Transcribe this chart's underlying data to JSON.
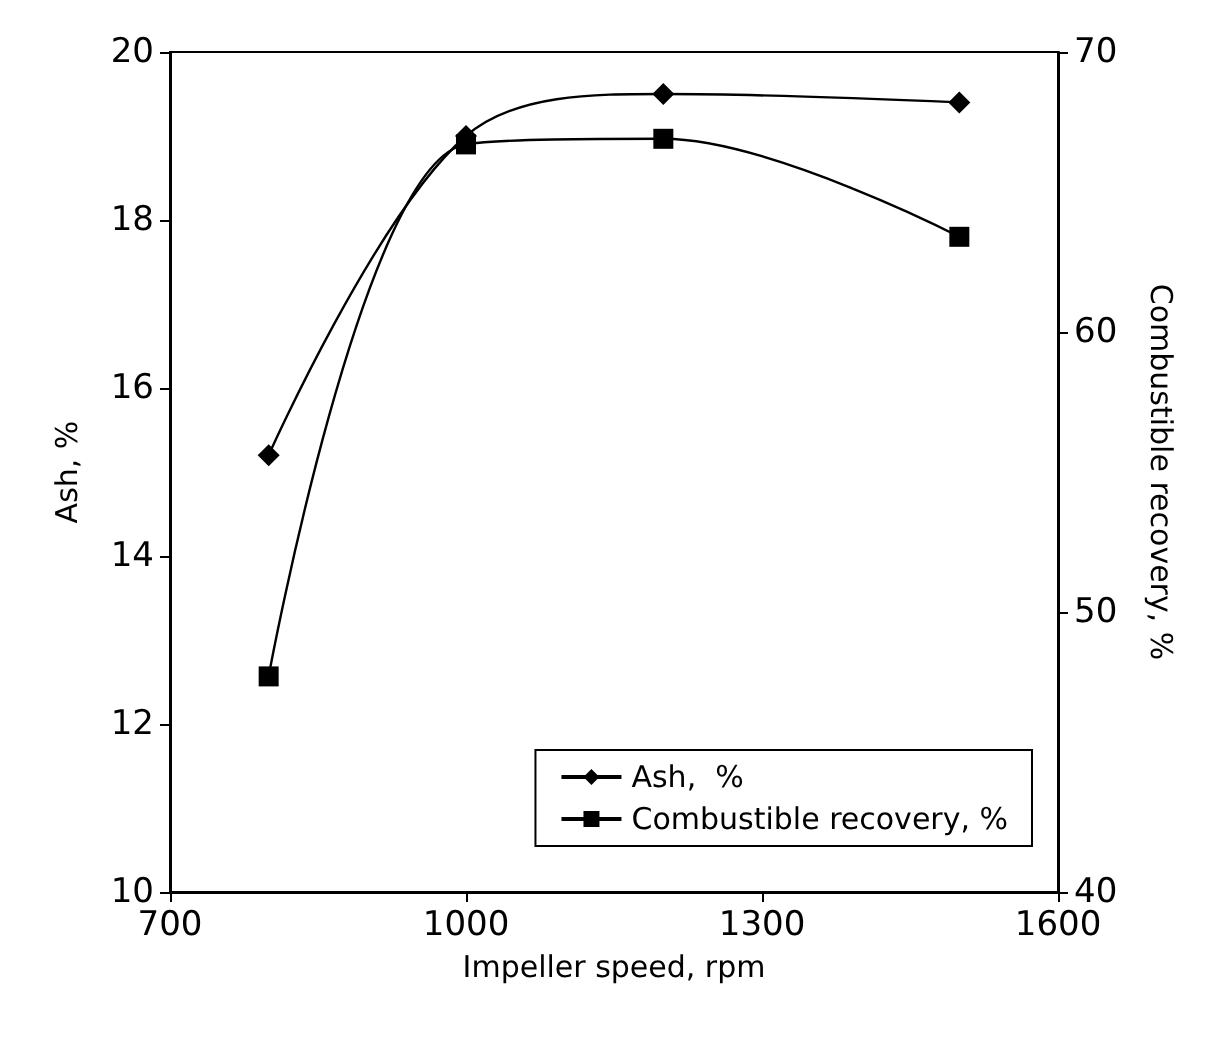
{
  "chart_data": {
    "type": "line",
    "xlabel": "Impeller speed, rpm",
    "ylabel": "Ash, %",
    "y2label": "Combustible recovery, %",
    "x": [
      800,
      1000,
      1200,
      1500
    ],
    "xlim": [
      700,
      1600
    ],
    "xticks": [
      700,
      1000,
      1300,
      1600
    ],
    "ylim": [
      10,
      20
    ],
    "yticks": [
      10,
      12,
      14,
      16,
      18,
      20
    ],
    "y2lim": [
      40,
      70
    ],
    "y2ticks": [
      40,
      50,
      60,
      70
    ],
    "legend": "bottom right",
    "grid": false,
    "line_style": "solid",
    "series": [
      {
        "name": "Ash,  %",
        "color": "#000000",
        "marker": "diamond",
        "values": [
          15.2,
          19.0,
          19.5,
          19.4
        ]
      },
      {
        "name": "Combustible recovery, %",
        "color": "#000000",
        "marker": "square",
        "axis": "y2",
        "values": [
          47.7,
          66.7,
          66.9,
          63.4
        ]
      }
    ]
  }
}
